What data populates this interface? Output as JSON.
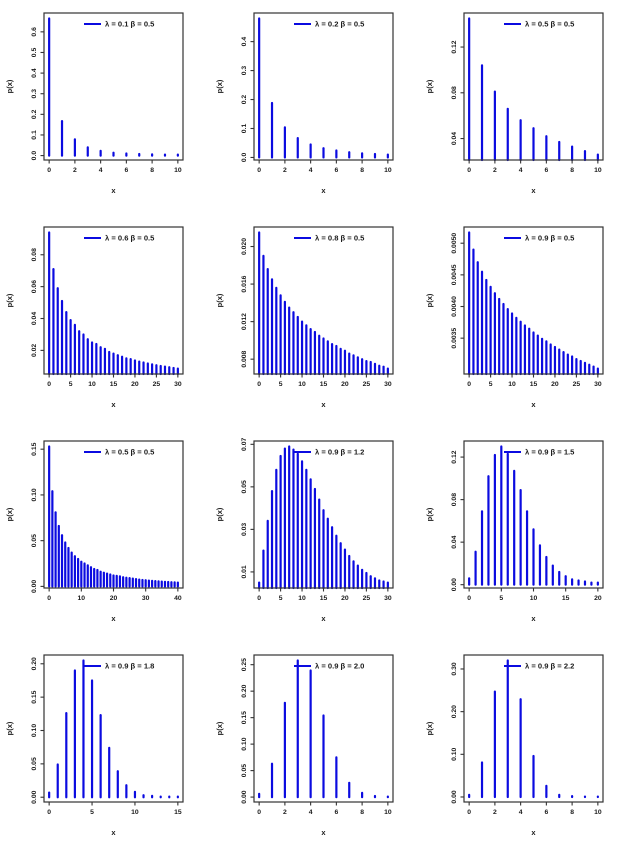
{
  "page": {
    "background": "#ffffff"
  },
  "styles": {
    "bar_color": "#0b0be0",
    "axis_color": "#333333",
    "text_color": "#1a1a1a"
  },
  "grid": {
    "rows": 4,
    "cols": 3
  },
  "chart_data": [
    {
      "type": "bar",
      "legend": "λ = 0.1 β = 0.5",
      "lambda": 0.1,
      "beta": 0.5,
      "xlabel": "x",
      "ylabel": "p(x)",
      "legend_position": "topright",
      "values": [
        0.665,
        0.167,
        0.079,
        0.04,
        0.023,
        0.014,
        0.01,
        0.008,
        0.006,
        0.005,
        0.005
      ],
      "xticks": [
        0,
        2,
        4,
        6,
        8,
        10
      ],
      "yticks": [
        0.0,
        0.1,
        0.2,
        0.3,
        0.4,
        0.5,
        0.6
      ],
      "ytick_labels": [
        "0.0",
        "0.1",
        "0.2",
        "0.3",
        "0.4",
        "0.5",
        "0.6"
      ]
    },
    {
      "type": "bar",
      "legend": "λ = 0.2 β = 0.5",
      "lambda": 0.2,
      "beta": 0.5,
      "xlabel": "x",
      "ylabel": "p(x)",
      "legend_position": "topright",
      "values": [
        0.48,
        0.188,
        0.104,
        0.067,
        0.045,
        0.032,
        0.024,
        0.018,
        0.014,
        0.012,
        0.01
      ],
      "xticks": [
        0,
        2,
        4,
        6,
        8,
        10
      ],
      "yticks": [
        0.0,
        0.1,
        0.2,
        0.3,
        0.4
      ],
      "ytick_labels": [
        "0.0",
        "0.1",
        "0.2",
        "0.3",
        "0.4"
      ]
    },
    {
      "type": "bar",
      "legend": "λ = 0.5 β = 0.5",
      "lambda": 0.5,
      "beta": 0.5,
      "xlabel": "x",
      "ylabel": "p(x)",
      "legend_position": "topright",
      "values": [
        0.145,
        0.104,
        0.081,
        0.066,
        0.056,
        0.049,
        0.042,
        0.037,
        0.033,
        0.029,
        0.026
      ],
      "xticks": [
        0,
        2,
        4,
        6,
        8,
        10
      ],
      "yticks": [
        0.04,
        0.08,
        0.12
      ],
      "ytick_labels": [
        "0.04",
        "0.08",
        "0.12"
      ]
    },
    {
      "type": "bar",
      "legend": "λ = 0.6 β = 0.5",
      "lambda": 0.6,
      "beta": 0.5,
      "xlabel": "x",
      "ylabel": "p(x)",
      "legend_position": "topright",
      "values": [
        0.094,
        0.071,
        0.059,
        0.051,
        0.044,
        0.039,
        0.036,
        0.032,
        0.03,
        0.027,
        0.025,
        0.024,
        0.022,
        0.021,
        0.019,
        0.018,
        0.017,
        0.016,
        0.015,
        0.0145,
        0.0137,
        0.013,
        0.0124,
        0.0118,
        0.0112,
        0.0107,
        0.0102,
        0.0098,
        0.0094,
        0.009,
        0.0086
      ],
      "xticks": [
        0,
        5,
        10,
        15,
        20,
        25,
        30
      ],
      "yticks": [
        0.02,
        0.04,
        0.06,
        0.08
      ],
      "ytick_labels": [
        "0.02",
        "0.04",
        "0.06",
        "0.08"
      ]
    },
    {
      "type": "bar",
      "legend": "λ = 0.8 β = 0.5",
      "lambda": 0.8,
      "beta": 0.5,
      "xlabel": "x",
      "ylabel": "p(x)",
      "legend_position": "topright",
      "values": [
        0.0215,
        0.019,
        0.0176,
        0.0165,
        0.0156,
        0.0148,
        0.0141,
        0.0135,
        0.013,
        0.0125,
        0.012,
        0.0116,
        0.0112,
        0.0109,
        0.0105,
        0.0102,
        0.0099,
        0.0096,
        0.0094,
        0.0091,
        0.0089,
        0.0086,
        0.0084,
        0.0082,
        0.008,
        0.0078,
        0.0077,
        0.0075,
        0.0073,
        0.0072,
        0.007
      ],
      "xticks": [
        0,
        5,
        10,
        15,
        20,
        25,
        30
      ],
      "yticks": [
        0.008,
        0.012,
        0.016,
        0.02
      ],
      "ytick_labels": [
        "0.008",
        "0.012",
        "0.016",
        "0.020"
      ]
    },
    {
      "type": "bar",
      "legend": "λ = 0.9 β = 0.5",
      "lambda": 0.9,
      "beta": 0.5,
      "xlabel": "x",
      "ylabel": "p(x)",
      "legend_position": "topright",
      "values": [
        0.00517,
        0.0049,
        0.0047,
        0.00455,
        0.00442,
        0.00431,
        0.00421,
        0.00412,
        0.00404,
        0.00396,
        0.00389,
        0.00382,
        0.00376,
        0.0037,
        0.00365,
        0.00359,
        0.00354,
        0.00349,
        0.00345,
        0.0034,
        0.00336,
        0.00332,
        0.00328,
        0.00324,
        0.00321,
        0.00317,
        0.00314,
        0.00311,
        0.00308,
        0.00305,
        0.00302
      ],
      "xticks": [
        0,
        5,
        10,
        15,
        20,
        25,
        30
      ],
      "yticks": [
        0.0035,
        0.004,
        0.0045,
        0.005
      ],
      "ytick_labels": [
        "0.0035",
        "0.0040",
        "0.0045",
        "0.0050"
      ]
    },
    {
      "type": "bar",
      "legend": "λ = 0.5 β = 0.5",
      "lambda": 0.5,
      "beta": 0.5,
      "xlabel": "x",
      "ylabel": "p(x)",
      "legend_position": "topright",
      "values": [
        0.153,
        0.104,
        0.081,
        0.066,
        0.056,
        0.048,
        0.042,
        0.037,
        0.033,
        0.03,
        0.027,
        0.025,
        0.023,
        0.021,
        0.019,
        0.018,
        0.016,
        0.015,
        0.014,
        0.013,
        0.012,
        0.0115,
        0.011,
        0.01,
        0.0095,
        0.009,
        0.0085,
        0.008,
        0.0075,
        0.007,
        0.0067,
        0.0064,
        0.0061,
        0.0058,
        0.0055,
        0.0053,
        0.005,
        0.0048,
        0.0046,
        0.0044,
        0.0042
      ],
      "xticks": [
        0,
        10,
        20,
        30,
        40
      ],
      "yticks": [
        0.0,
        0.05,
        0.1,
        0.15
      ],
      "ytick_labels": [
        "0.00",
        "0.05",
        "0.10",
        "0.15"
      ]
    },
    {
      "type": "bar",
      "legend": "λ = 0.9 β = 1.2",
      "lambda": 0.9,
      "beta": 1.2,
      "xlabel": "x",
      "ylabel": "p(x)",
      "legend_position": "topright",
      "values": [
        0.005,
        0.02,
        0.034,
        0.048,
        0.058,
        0.0645,
        0.068,
        0.069,
        0.0675,
        0.0655,
        0.062,
        0.058,
        0.0535,
        0.049,
        0.044,
        0.039,
        0.035,
        0.031,
        0.027,
        0.0235,
        0.0205,
        0.0175,
        0.015,
        0.013,
        0.011,
        0.0095,
        0.008,
        0.007,
        0.006,
        0.0055,
        0.005
      ],
      "xticks": [
        0,
        5,
        10,
        15,
        20,
        25,
        30
      ],
      "yticks": [
        0.01,
        0.03,
        0.05,
        0.07
      ],
      "ytick_labels": [
        "0.01",
        "0.03",
        "0.05",
        "0.07"
      ]
    },
    {
      "type": "bar",
      "legend": "λ = 0.9 β = 1.5",
      "lambda": 0.9,
      "beta": 1.5,
      "xlabel": "x",
      "ylabel": "p(x)",
      "legend_position": "topright",
      "values": [
        0.006,
        0.031,
        0.069,
        0.102,
        0.122,
        0.13,
        0.123,
        0.107,
        0.089,
        0.069,
        0.052,
        0.037,
        0.026,
        0.018,
        0.012,
        0.008,
        0.005,
        0.004,
        0.003,
        0.002,
        0.002
      ],
      "xticks": [
        0,
        5,
        10,
        15,
        20
      ],
      "yticks": [
        0.0,
        0.04,
        0.08,
        0.12
      ],
      "ytick_labels": [
        "0.00",
        "0.04",
        "0.08",
        "0.12"
      ]
    },
    {
      "type": "bar",
      "legend": "λ = 0.9 β = 1.8",
      "lambda": 0.9,
      "beta": 1.8,
      "xlabel": "x",
      "ylabel": "p(x)",
      "legend_position": "topright",
      "values": [
        0.007,
        0.049,
        0.126,
        0.19,
        0.205,
        0.175,
        0.123,
        0.074,
        0.039,
        0.018,
        0.008,
        0.003,
        0.002,
        0.001,
        0.001,
        0.001
      ],
      "xticks": [
        0,
        5,
        10,
        15
      ],
      "yticks": [
        0.0,
        0.05,
        0.1,
        0.15,
        0.2
      ],
      "ytick_labels": [
        "0.00",
        "0.05",
        "0.10",
        "0.15",
        "0.20"
      ]
    },
    {
      "type": "bar",
      "legend": "λ = 0.9 β = 2.0",
      "lambda": 0.9,
      "beta": 2.0,
      "xlabel": "x",
      "ylabel": "p(x)",
      "legend_position": "topright",
      "values": [
        0.006,
        0.063,
        0.178,
        0.258,
        0.239,
        0.154,
        0.075,
        0.027,
        0.008,
        0.002,
        0.001
      ],
      "xticks": [
        0,
        2,
        4,
        6,
        8,
        10
      ],
      "yticks": [
        0.0,
        0.05,
        0.1,
        0.15,
        0.2,
        0.25
      ],
      "ytick_labels": [
        "0.00",
        "0.05",
        "0.10",
        "0.15",
        "0.20",
        "0.25"
      ]
    },
    {
      "type": "bar",
      "legend": "λ = 0.9 β = 2.2",
      "lambda": 0.9,
      "beta": 2.2,
      "xlabel": "x",
      "ylabel": "p(x)",
      "legend_position": "topright",
      "values": [
        0.005,
        0.081,
        0.247,
        0.32,
        0.229,
        0.096,
        0.026,
        0.005,
        0.002,
        0.001,
        0.001
      ],
      "xticks": [
        0,
        2,
        4,
        6,
        8,
        10
      ],
      "yticks": [
        0.0,
        0.1,
        0.2,
        0.3
      ],
      "ytick_labels": [
        "0.00",
        "0.10",
        "0.20",
        "0.30"
      ]
    }
  ]
}
